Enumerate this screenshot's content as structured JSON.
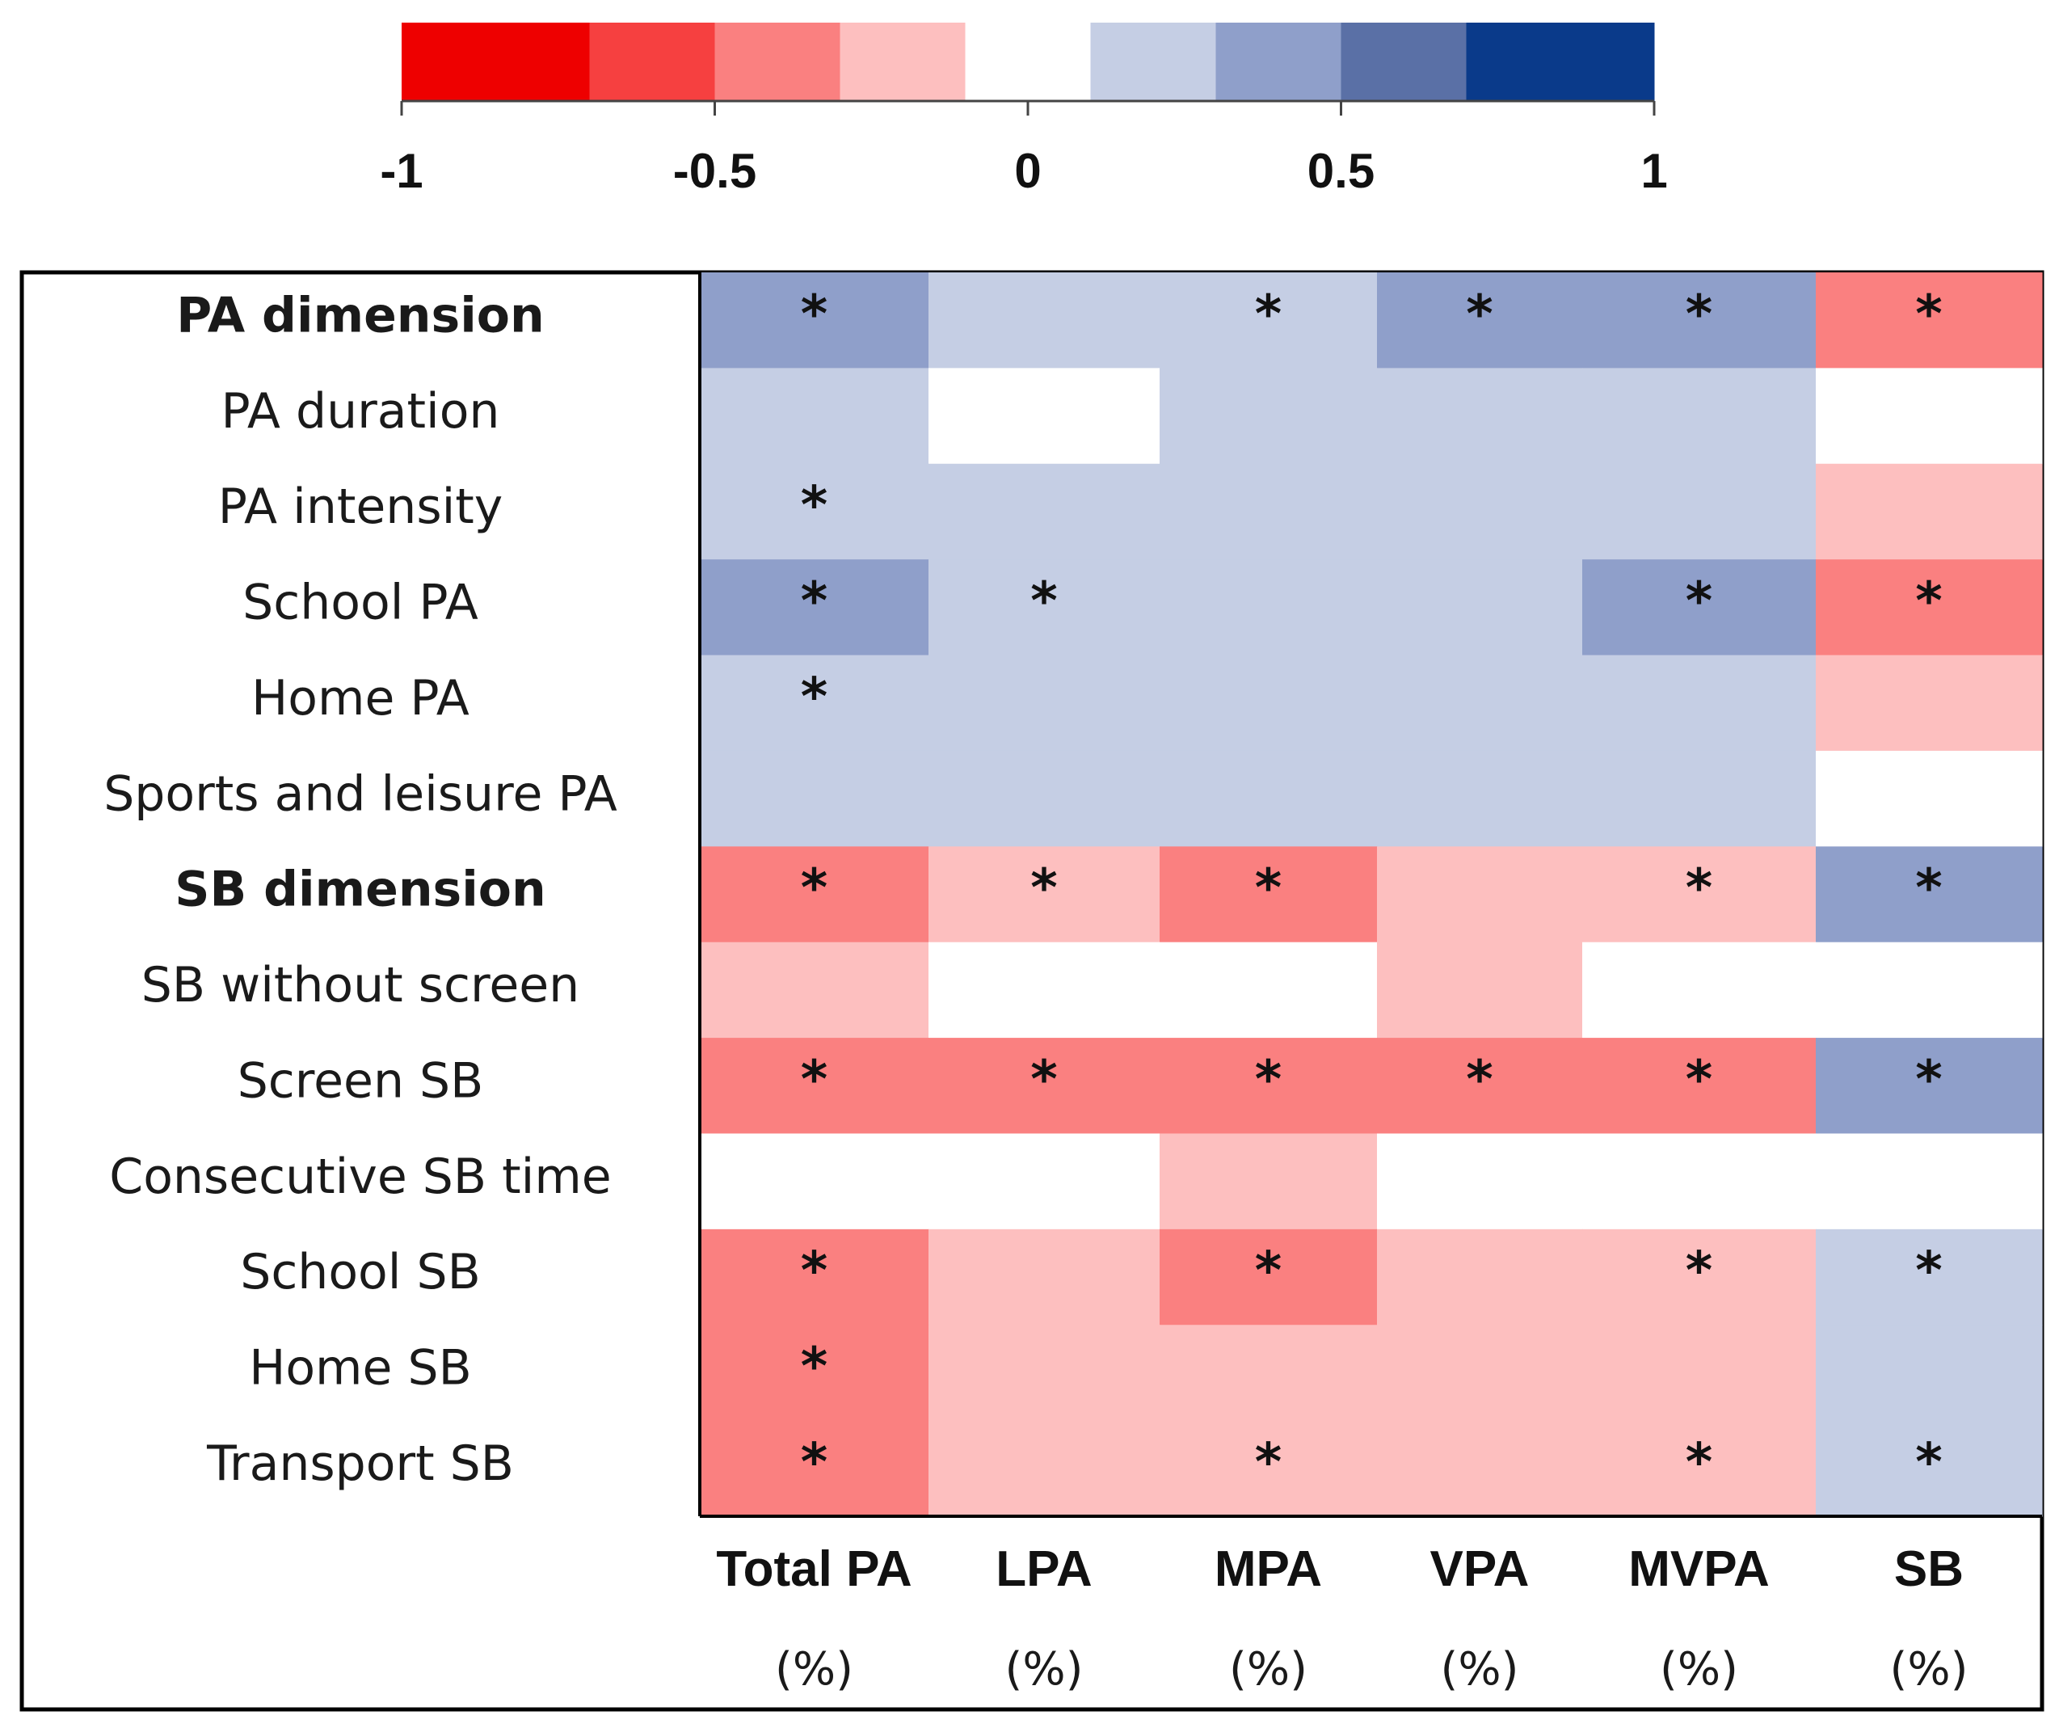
{
  "chart_data": {
    "type": "heatmap",
    "title": "",
    "legend": {
      "placement": "top",
      "range": [
        -1,
        1
      ],
      "boundaries": [
        -1,
        -0.7,
        -0.5,
        -0.3,
        -0.1,
        0.1,
        0.3,
        0.5,
        0.7,
        1
      ],
      "colors": [
        "#ee0000",
        "#f64040",
        "#fa8080",
        "#fdbfbf",
        "#ffffff",
        "#c5cee4",
        "#8f9fca",
        "#5a70a6",
        "#0a3a8a"
      ],
      "tick_values": [
        -1,
        -0.5,
        0,
        0.5,
        1
      ],
      "tick_labels": [
        "-1",
        "-0.5",
        "0",
        "0.5",
        "1"
      ]
    },
    "columns": [
      {
        "label": "Total PA",
        "unit": "(%)"
      },
      {
        "label": "LPA",
        "unit": "(%)"
      },
      {
        "label": "MPA",
        "unit": "(%)"
      },
      {
        "label": "VPA",
        "unit": "(%)"
      },
      {
        "label": "MVPA",
        "unit": "(%)"
      },
      {
        "label": "SB",
        "unit": "(%)"
      }
    ],
    "rows": [
      {
        "label": "PA dimension",
        "bold": true,
        "values": [
          0.4,
          0.2,
          0.2,
          0.4,
          0.4,
          -0.4
        ],
        "significant": [
          true,
          false,
          true,
          true,
          true,
          true
        ]
      },
      {
        "label": "PA duration",
        "bold": false,
        "values": [
          0.2,
          0.0,
          0.2,
          0.2,
          0.2,
          0.0
        ],
        "significant": [
          false,
          false,
          false,
          false,
          false,
          false
        ]
      },
      {
        "label": "PA intensity",
        "bold": false,
        "values": [
          0.2,
          0.2,
          0.2,
          0.2,
          0.2,
          -0.2
        ],
        "significant": [
          true,
          false,
          false,
          false,
          false,
          false
        ]
      },
      {
        "label": "School PA",
        "bold": false,
        "values": [
          0.4,
          0.2,
          0.2,
          0.2,
          0.4,
          -0.4
        ],
        "significant": [
          true,
          true,
          false,
          false,
          true,
          true
        ]
      },
      {
        "label": "Home PA",
        "bold": false,
        "values": [
          0.2,
          0.2,
          0.2,
          0.2,
          0.2,
          -0.2
        ],
        "significant": [
          true,
          false,
          false,
          false,
          false,
          false
        ]
      },
      {
        "label": "Sports and leisure PA",
        "bold": false,
        "values": [
          0.2,
          0.2,
          0.2,
          0.2,
          0.2,
          0.0
        ],
        "significant": [
          false,
          false,
          false,
          false,
          false,
          false
        ]
      },
      {
        "label": "SB dimension",
        "bold": true,
        "values": [
          -0.4,
          -0.2,
          -0.4,
          -0.2,
          -0.2,
          0.4
        ],
        "significant": [
          true,
          true,
          true,
          false,
          true,
          true
        ]
      },
      {
        "label": "SB without screen",
        "bold": false,
        "values": [
          -0.2,
          0.0,
          0.0,
          -0.2,
          0.0,
          0.0
        ],
        "significant": [
          false,
          false,
          false,
          false,
          false,
          false
        ]
      },
      {
        "label": "Screen SB",
        "bold": false,
        "values": [
          -0.4,
          -0.4,
          -0.4,
          -0.4,
          -0.4,
          0.4
        ],
        "significant": [
          true,
          true,
          true,
          true,
          true,
          true
        ]
      },
      {
        "label": "Consecutive SB time",
        "bold": false,
        "values": [
          0.0,
          0.0,
          -0.2,
          0.0,
          0.0,
          0.0
        ],
        "significant": [
          false,
          false,
          false,
          false,
          false,
          false
        ]
      },
      {
        "label": "School SB",
        "bold": false,
        "values": [
          -0.4,
          -0.2,
          -0.4,
          -0.2,
          -0.2,
          0.2
        ],
        "significant": [
          true,
          false,
          true,
          false,
          true,
          true
        ]
      },
      {
        "label": "Home SB",
        "bold": false,
        "values": [
          -0.4,
          -0.2,
          -0.2,
          -0.2,
          -0.2,
          0.2
        ],
        "significant": [
          true,
          false,
          false,
          false,
          false,
          false
        ]
      },
      {
        "label": "Transport SB",
        "bold": false,
        "values": [
          -0.4,
          -0.2,
          -0.2,
          -0.2,
          -0.2,
          0.2
        ],
        "significant": [
          true,
          false,
          true,
          false,
          true,
          true
        ]
      }
    ],
    "significance_marker": "*"
  }
}
